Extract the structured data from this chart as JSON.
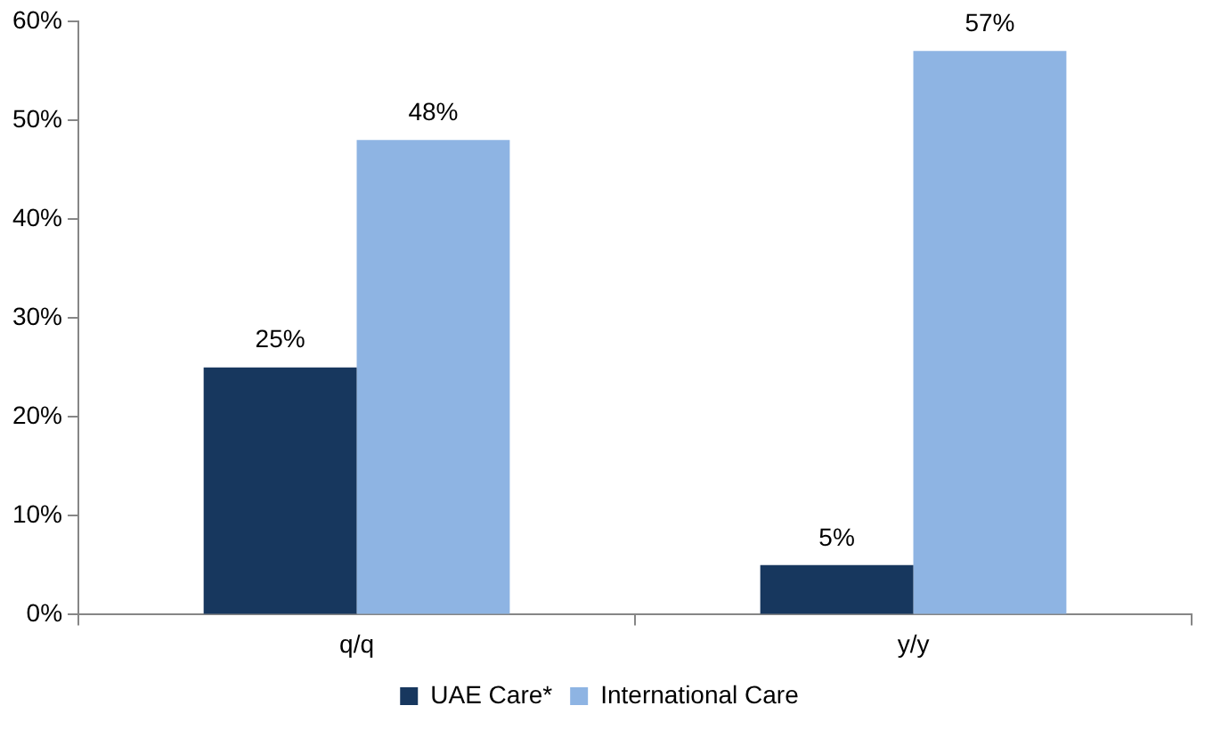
{
  "chart_data": {
    "type": "bar",
    "categories": [
      "q/q",
      "y/y"
    ],
    "series": [
      {
        "name": "UAE Care*",
        "color": "#17375e",
        "values": [
          25,
          5
        ],
        "value_labels": [
          "25%",
          "5%"
        ]
      },
      {
        "name": "International Care",
        "color": "#8eb4e3",
        "values": [
          48,
          57
        ],
        "value_labels": [
          "48%",
          "57%"
        ]
      }
    ],
    "ylim": [
      0,
      60
    ],
    "yticks": [
      {
        "value": 0,
        "label": "0%"
      },
      {
        "value": 10,
        "label": "10%"
      },
      {
        "value": 20,
        "label": "20%"
      },
      {
        "value": 30,
        "label": "30%"
      },
      {
        "value": 40,
        "label": "40%"
      },
      {
        "value": 50,
        "label": "50%"
      },
      {
        "value": 60,
        "label": "60%"
      }
    ],
    "grid": false,
    "legend": "bottom"
  }
}
